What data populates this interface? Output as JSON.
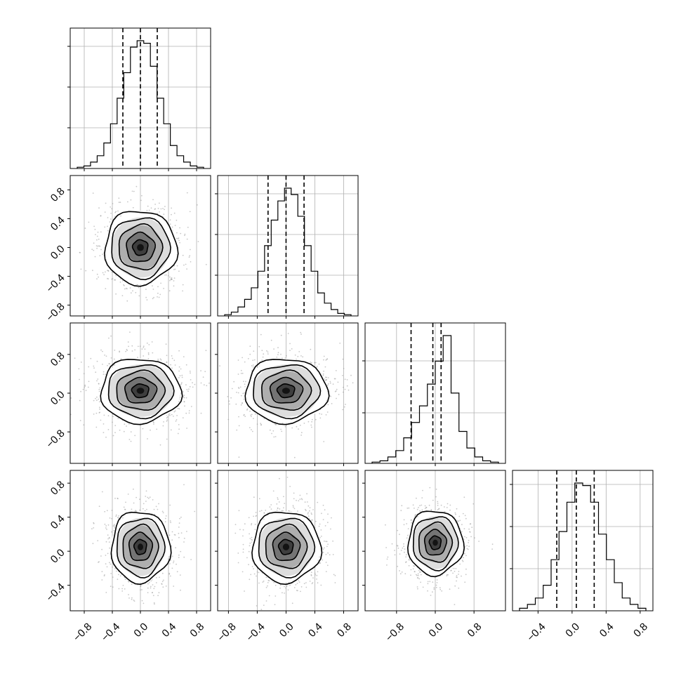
{
  "chart_data": {
    "type": "corner",
    "variables": 4,
    "axis_ranges": [
      [
        -1.0,
        1.0
      ],
      [
        -0.95,
        1.0
      ],
      [
        -1.45,
        1.45
      ],
      [
        -0.7,
        0.95
      ]
    ],
    "ticks": [
      {
        "values": [
          -0.8,
          -0.4,
          0.0,
          0.4,
          0.8
        ],
        "labels": [
          "−0.8",
          "−0.4",
          "0.0",
          "0.4",
          "0.8"
        ]
      },
      {
        "values": [
          -0.8,
          -0.4,
          0.0,
          0.4,
          0.8
        ],
        "labels": [
          "−0.8",
          "−0.4",
          "0.0",
          "0.4",
          "0.8"
        ]
      },
      {
        "values": [
          -0.8,
          0.0,
          0.8
        ],
        "labels": [
          "−0.8",
          "0.0",
          "0.8"
        ]
      },
      {
        "values": [
          -0.4,
          0.0,
          0.4,
          0.8
        ],
        "labels": [
          "−0.4",
          "0.0",
          "0.4",
          "0.8"
        ]
      }
    ],
    "quantiles": [
      [
        -0.25,
        0.0,
        0.24
      ],
      [
        -0.25,
        0.0,
        0.25
      ],
      [
        -0.5,
        -0.05,
        0.12
      ],
      [
        -0.18,
        0.05,
        0.26
      ]
    ],
    "histograms": [
      [
        0.01,
        0.02,
        0.05,
        0.1,
        0.2,
        0.35,
        0.55,
        0.75,
        0.95,
        1.0,
        0.98,
        0.8,
        0.55,
        0.35,
        0.18,
        0.1,
        0.05,
        0.02,
        0.01
      ],
      [
        0.01,
        0.03,
        0.07,
        0.13,
        0.22,
        0.35,
        0.55,
        0.75,
        0.9,
        1.0,
        0.95,
        0.78,
        0.55,
        0.35,
        0.18,
        0.1,
        0.05,
        0.02,
        0.01
      ],
      [
        0.01,
        0.02,
        0.05,
        0.1,
        0.2,
        0.32,
        0.45,
        0.62,
        0.8,
        1.0,
        0.55,
        0.25,
        0.12,
        0.05,
        0.02,
        0.01
      ],
      [
        0.02,
        0.05,
        0.1,
        0.2,
        0.4,
        0.62,
        0.85,
        1.0,
        0.98,
        0.85,
        0.6,
        0.4,
        0.22,
        0.1,
        0.05,
        0.02
      ]
    ],
    "histogram_yticks": [
      [
        0.29,
        0.58,
        0.87
      ],
      [
        0.29,
        0.58,
        0.87
      ],
      [
        0.36,
        0.73
      ],
      [
        0.3,
        0.6,
        0.9
      ]
    ],
    "joint_centers": {
      "1,0": [
        0.0,
        0.0
      ],
      "2,0": [
        0.0,
        0.05
      ],
      "2,1": [
        0.0,
        0.05
      ],
      "3,0": [
        0.0,
        0.05
      ],
      "3,1": [
        0.0,
        0.05
      ],
      "3,2": [
        0.0,
        0.1
      ]
    },
    "joint_spreads": [
      {
        "pair": "1,0",
        "sx": 0.27,
        "sy": 0.27
      },
      {
        "pair": "2,0",
        "sx": 0.3,
        "sy": 0.35
      },
      {
        "pair": "2,1",
        "sx": 0.3,
        "sy": 0.35
      },
      {
        "pair": "3,0",
        "sx": 0.22,
        "sy": 0.22
      },
      {
        "pair": "3,1",
        "sx": 0.25,
        "sy": 0.22
      },
      {
        "pair": "3,2",
        "sx": 0.3,
        "sy": 0.2
      }
    ],
    "grid": true
  }
}
